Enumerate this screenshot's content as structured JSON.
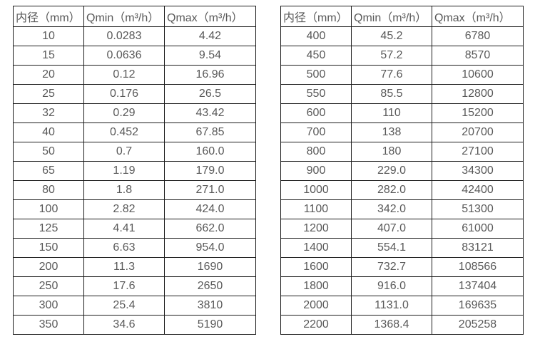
{
  "page": {
    "background": "#ffffff",
    "text_color": "#595959",
    "border_color": "#1c1c1c"
  },
  "tables": [
    {
      "name": "flow-table-small-diameters",
      "columns": [
        "内径（mm）",
        "Qmin（m³/h）",
        "Qmax（m³/h）"
      ],
      "rows": [
        [
          "10",
          "0.0283",
          "4.42"
        ],
        [
          "15",
          "0.0636",
          "9.54"
        ],
        [
          "20",
          "0.12",
          "16.96"
        ],
        [
          "25",
          "0.176",
          "26.5"
        ],
        [
          "32",
          "0.29",
          "43.42"
        ],
        [
          "40",
          "0.452",
          "67.85"
        ],
        [
          "50",
          "0.7",
          "160.0"
        ],
        [
          "65",
          "1.19",
          "179.0"
        ],
        [
          "80",
          "1.8",
          "271.0"
        ],
        [
          "100",
          "2.82",
          "424.0"
        ],
        [
          "125",
          "4.41",
          "662.0"
        ],
        [
          "150",
          "6.63",
          "954.0"
        ],
        [
          "200",
          "11.3",
          "1690"
        ],
        [
          "250",
          "17.6",
          "2650"
        ],
        [
          "300",
          "25.4",
          "3810"
        ],
        [
          "350",
          "34.6",
          "5190"
        ]
      ]
    },
    {
      "name": "flow-table-large-diameters",
      "columns": [
        "内径（mm）",
        "Qmin（m³/h）",
        "Qmax（m³/h）"
      ],
      "rows": [
        [
          "400",
          "45.2",
          "6780"
        ],
        [
          "450",
          "57.2",
          "8570"
        ],
        [
          "500",
          "77.6",
          "10600"
        ],
        [
          "550",
          "85.5",
          "12800"
        ],
        [
          "600",
          "110",
          "15200"
        ],
        [
          "700",
          "138",
          "20700"
        ],
        [
          "800",
          "180",
          "27100"
        ],
        [
          "900",
          "229.0",
          "34300"
        ],
        [
          "1000",
          "282.0",
          "42400"
        ],
        [
          "1100",
          "342.0",
          "51300"
        ],
        [
          "1200",
          "407.0",
          "61000"
        ],
        [
          "1400",
          "554.1",
          "83121"
        ],
        [
          "1600",
          "732.7",
          "108566"
        ],
        [
          "1800",
          "916.0",
          "137404"
        ],
        [
          "2000",
          "1131.0",
          "169635"
        ],
        [
          "2200",
          "1368.4",
          "205258"
        ]
      ]
    }
  ]
}
